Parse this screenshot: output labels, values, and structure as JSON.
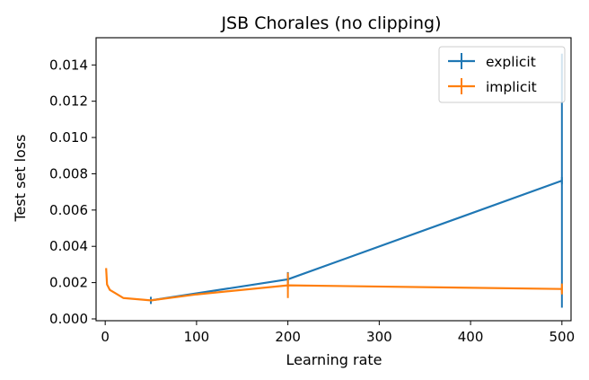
{
  "chart_data": {
    "type": "line",
    "title": "JSB Chorales (no clipping)",
    "xlabel": "Learning rate",
    "ylabel": "Test set loss",
    "xlim": [
      -10,
      510
    ],
    "ylim": [
      -0.0001,
      0.0155
    ],
    "xticks": [
      0,
      100,
      200,
      300,
      400,
      500
    ],
    "xtick_labels": [
      "0",
      "100",
      "200",
      "300",
      "400",
      "500"
    ],
    "yticks": [
      0.0,
      0.002,
      0.004,
      0.006,
      0.008,
      0.01,
      0.012,
      0.014
    ],
    "ytick_labels": [
      "0.000",
      "0.002",
      "0.004",
      "0.006",
      "0.008",
      "0.010",
      "0.012",
      "0.014"
    ],
    "grid": false,
    "legend_position": "top-right",
    "series": [
      {
        "name": "explicit",
        "color": "#1f77b4",
        "x": [
          50,
          200,
          500
        ],
        "y": [
          0.00102,
          0.00218,
          0.00762
        ],
        "yerr": [
          2e-05,
          0.0004,
          0.007
        ]
      },
      {
        "name": "implicit",
        "color": "#ff7f0e",
        "x": [
          1,
          2,
          5,
          10,
          20,
          50,
          100,
          200,
          500
        ],
        "y": [
          0.0028,
          0.0019,
          0.0016,
          0.00145,
          0.00115,
          0.00102,
          0.00135,
          0.00185,
          0.00165
        ],
        "yerr": [
          0.0,
          0.0,
          0.0,
          0.0,
          0.0,
          0.0,
          0.0,
          0.0007,
          0.0003
        ]
      }
    ]
  }
}
